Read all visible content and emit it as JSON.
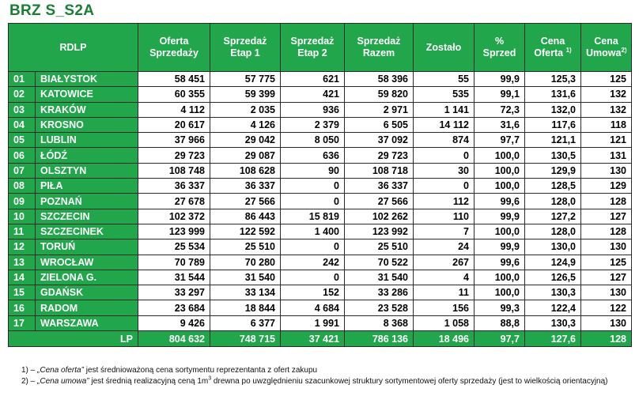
{
  "title": "BRZ S_S2A",
  "headers": {
    "rdlp": "RDLP",
    "oferta": [
      "Oferta",
      "Sprzedaży"
    ],
    "etap1": [
      "Sprzedaż",
      "Etap 1"
    ],
    "etap2": [
      "Sprzedaż",
      "Etap 2"
    ],
    "razem": [
      "Sprzedaż",
      "Razem"
    ],
    "zostalo": "Zostało",
    "proc": [
      "%",
      "Sprzed"
    ],
    "cena_oferta": [
      "Cena",
      "Oferta",
      "1)"
    ],
    "cena_umowa": [
      "Cena",
      "Umowa",
      "2)"
    ]
  },
  "rows": [
    {
      "nr": "01",
      "name": "BIAŁYSTOK",
      "oferta": "58 451",
      "etap1": "57 775",
      "etap2": "621",
      "razem": "58 396",
      "zostalo": "55",
      "proc": "99,9",
      "cena_oferta": "125,3",
      "cena_umowa": "125"
    },
    {
      "nr": "02",
      "name": "KATOWICE",
      "oferta": "60 355",
      "etap1": "59 399",
      "etap2": "421",
      "razem": "59 820",
      "zostalo": "535",
      "proc": "99,1",
      "cena_oferta": "131,6",
      "cena_umowa": "132"
    },
    {
      "nr": "03",
      "name": "KRAKÓW",
      "oferta": "4 112",
      "etap1": "2 035",
      "etap2": "936",
      "razem": "2 971",
      "zostalo": "1 141",
      "proc": "72,3",
      "cena_oferta": "132,0",
      "cena_umowa": "132"
    },
    {
      "nr": "04",
      "name": "KROSNO",
      "oferta": "20 617",
      "etap1": "4 126",
      "etap2": "2 379",
      "razem": "6 505",
      "zostalo": "14 112",
      "proc": "31,6",
      "cena_oferta": "117,6",
      "cena_umowa": "118"
    },
    {
      "nr": "05",
      "name": "LUBLIN",
      "oferta": "37 966",
      "etap1": "29 042",
      "etap2": "8 050",
      "razem": "37 092",
      "zostalo": "874",
      "proc": "97,7",
      "cena_oferta": "121,1",
      "cena_umowa": "121"
    },
    {
      "nr": "06",
      "name": "ŁÓDŹ",
      "oferta": "29 723",
      "etap1": "29 087",
      "etap2": "636",
      "razem": "29 723",
      "zostalo": "0",
      "proc": "100,0",
      "cena_oferta": "130,5",
      "cena_umowa": "131"
    },
    {
      "nr": "07",
      "name": "OLSZTYN",
      "oferta": "108 748",
      "etap1": "108 628",
      "etap2": "90",
      "razem": "108 718",
      "zostalo": "30",
      "proc": "100,0",
      "cena_oferta": "129,9",
      "cena_umowa": "130"
    },
    {
      "nr": "08",
      "name": "PIŁA",
      "oferta": "36 337",
      "etap1": "36 337",
      "etap2": "0",
      "razem": "36 337",
      "zostalo": "0",
      "proc": "100,0",
      "cena_oferta": "128,5",
      "cena_umowa": "129"
    },
    {
      "nr": "09",
      "name": "POZNAŃ",
      "oferta": "27 678",
      "etap1": "27 566",
      "etap2": "0",
      "razem": "27 566",
      "zostalo": "112",
      "proc": "99,6",
      "cena_oferta": "128,0",
      "cena_umowa": "128"
    },
    {
      "nr": "10",
      "name": "SZCZECIN",
      "oferta": "102 372",
      "etap1": "86 443",
      "etap2": "15 819",
      "razem": "102 262",
      "zostalo": "110",
      "proc": "99,9",
      "cena_oferta": "127,2",
      "cena_umowa": "127"
    },
    {
      "nr": "11",
      "name": "SZCZECINEK",
      "oferta": "123 999",
      "etap1": "122 592",
      "etap2": "1 400",
      "razem": "123 992",
      "zostalo": "7",
      "proc": "100,0",
      "cena_oferta": "128,0",
      "cena_umowa": "128"
    },
    {
      "nr": "12",
      "name": "TORUŃ",
      "oferta": "25 534",
      "etap1": "25 510",
      "etap2": "0",
      "razem": "25 510",
      "zostalo": "24",
      "proc": "99,9",
      "cena_oferta": "130,0",
      "cena_umowa": "130"
    },
    {
      "nr": "13",
      "name": "WROCŁAW",
      "oferta": "70 789",
      "etap1": "70 280",
      "etap2": "242",
      "razem": "70 522",
      "zostalo": "267",
      "proc": "99,6",
      "cena_oferta": "124,9",
      "cena_umowa": "125"
    },
    {
      "nr": "14",
      "name": "ZIELONA G.",
      "oferta": "31 544",
      "etap1": "31 540",
      "etap2": "0",
      "razem": "31 540",
      "zostalo": "4",
      "proc": "100,0",
      "cena_oferta": "126,5",
      "cena_umowa": "127"
    },
    {
      "nr": "15",
      "name": "GDAŃSK",
      "oferta": "33 297",
      "etap1": "33 134",
      "etap2": "152",
      "razem": "33 286",
      "zostalo": "11",
      "proc": "100,0",
      "cena_oferta": "130,3",
      "cena_umowa": "130"
    },
    {
      "nr": "16",
      "name": "RADOM",
      "oferta": "23 684",
      "etap1": "18 844",
      "etap2": "4 684",
      "razem": "23 528",
      "zostalo": "156",
      "proc": "99,3",
      "cena_oferta": "122,4",
      "cena_umowa": "122"
    },
    {
      "nr": "17",
      "name": "WARSZAWA",
      "oferta": "9 426",
      "etap1": "6 377",
      "etap2": "1 991",
      "razem": "8 368",
      "zostalo": "1 058",
      "proc": "88,8",
      "cena_oferta": "130,3",
      "cena_umowa": "130"
    }
  ],
  "total": {
    "label": "LP",
    "oferta": "804 632",
    "etap1": "748 715",
    "etap2": "37 421",
    "razem": "786 136",
    "zostalo": "18 496",
    "proc": "97,7",
    "cena_oferta": "127,6",
    "cena_umowa": "128"
  },
  "notes": {
    "note1_prefix": "1) – ",
    "note1_quote": "„Cena oferta”",
    "note1_rest": " jest średnioważoną cena sortymentu reprezentanta z ofert zakupu",
    "note2_prefix": "2) – ",
    "note2_quote": "„Cena umowa”",
    "note2_rest_a": "  jest średnią realizacyjną ceną 1m",
    "note2_sup": "3",
    "note2_rest_b": " drewna po uwzględnieniu szacunkowej struktury sortymentowej oferty sprzedaży (jest  to wielkością orientacyjną)"
  },
  "colors": {
    "header_green": "#22a64c",
    "title_green": "#1a7f35"
  }
}
